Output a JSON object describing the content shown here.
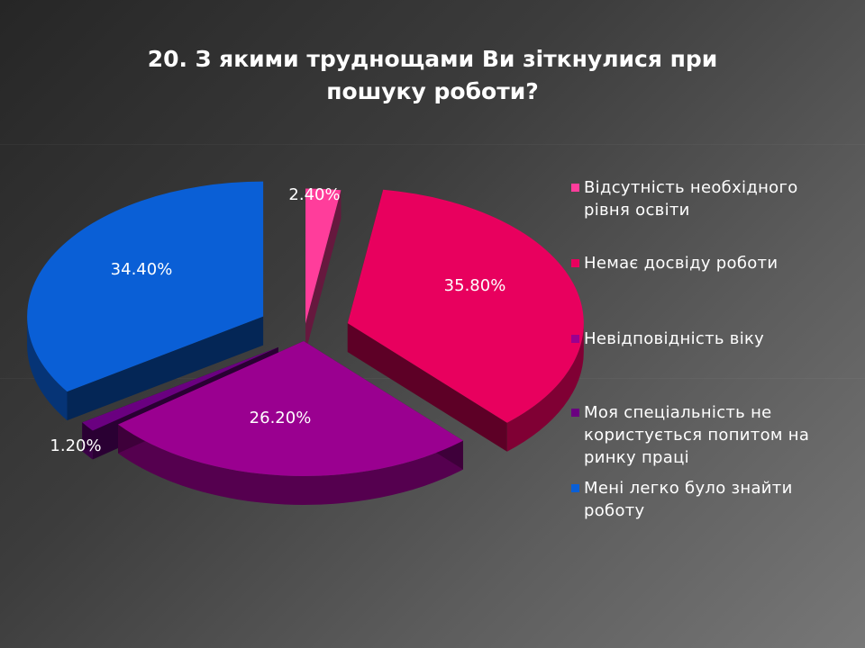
{
  "title": {
    "line1": "20. З якими труднощами Ви зіткнулися при",
    "line2": "пошуку роботи?"
  },
  "chart_data": {
    "type": "pie",
    "style": "3d-exploded",
    "legend_position": "right",
    "slices": [
      {
        "label": "Відсутність необхідного рівня освіти",
        "value": 2.4,
        "display": "2.40%",
        "color": "#ff3d9b"
      },
      {
        "label": "Немає досвіду роботи",
        "value": 35.8,
        "display": "35.80%",
        "color": "#e8005e"
      },
      {
        "label": "Невідповідність віку",
        "value": 26.2,
        "display": "26.20%",
        "color": "#9a0090"
      },
      {
        "label": "Моя спеціальність не користується попитом на ринку праці",
        "value": 1.2,
        "display": "1.20%",
        "color": "#6a0080"
      },
      {
        "label": "Мені легко було знайти роботу",
        "value": 34.4,
        "display": "34.40%",
        "color": "#0a5fd6"
      }
    ]
  }
}
